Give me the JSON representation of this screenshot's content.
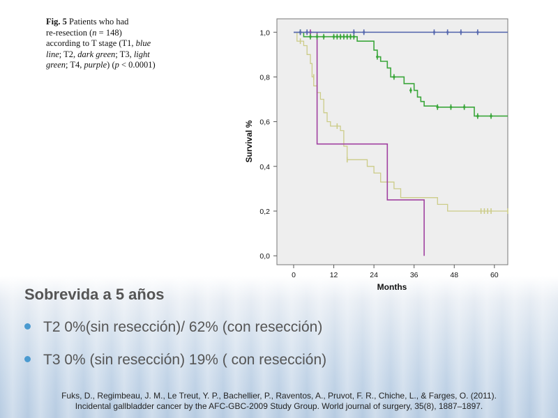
{
  "figure_caption": {
    "fig_label": "Fig. 5",
    "line1_rest": " Patients who had",
    "line2a": "re-resection (",
    "n_var": "n",
    "line2b": " = 148)",
    "line3": "according to T stage (T1, ",
    "line3_italic": "blue",
    "line4_italic": "line",
    "line4a": "; T2, ",
    "line4_italic2": "dark green",
    "line4b": "; T3, ",
    "line4_italic3": "light",
    "line5_italic": "green",
    "line5a": "; T4, ",
    "line5_italic2": "purple",
    "line5b": ") (",
    "p_var": "p",
    "line5c": " < 0.0001)"
  },
  "colors": {
    "plot_bg": "#eeeeee",
    "t1": "#5a6bb0",
    "t2": "#3aa63a",
    "t3": "#cccc88",
    "t4": "#a040a0",
    "bullet": "#4a9ad0"
  },
  "chart_data": {
    "type": "line",
    "title": "",
    "xlabel": "Months",
    "ylabel": "Survival %",
    "xlim": [
      -5,
      64
    ],
    "ylim": [
      -0.04,
      1.06
    ],
    "xticks": [
      "0",
      "12",
      "24",
      "36",
      "48",
      "60"
    ],
    "yticks": [
      "0,0",
      "0,2",
      "0,4",
      "0,6",
      "0,8",
      "1,0"
    ],
    "grid": false,
    "series": [
      {
        "name": "",
        "color_key": "t1",
        "points": [
          [
            0,
            1.0
          ],
          [
            64,
            1.0
          ]
        ],
        "censored": [
          [
            2,
            1.0
          ],
          [
            4,
            1.0
          ],
          [
            18,
            1.0
          ],
          [
            21,
            1.0
          ],
          [
            42,
            1.0
          ],
          [
            46,
            1.0
          ],
          [
            50,
            1.0
          ],
          [
            55,
            1.0
          ]
        ]
      },
      {
        "name": "",
        "color_key": "t2",
        "points": [
          [
            0,
            1.0
          ],
          [
            3,
            1.0
          ],
          [
            3,
            0.98
          ],
          [
            19,
            0.98
          ],
          [
            19,
            0.96
          ],
          [
            24,
            0.96
          ],
          [
            24,
            0.92
          ],
          [
            25,
            0.92
          ],
          [
            25,
            0.89
          ],
          [
            26,
            0.89
          ],
          [
            26,
            0.87
          ],
          [
            28,
            0.87
          ],
          [
            28,
            0.84
          ],
          [
            29,
            0.84
          ],
          [
            29,
            0.8
          ],
          [
            33,
            0.8
          ],
          [
            33,
            0.77
          ],
          [
            36,
            0.77
          ],
          [
            36,
            0.74
          ],
          [
            37,
            0.74
          ],
          [
            37,
            0.71
          ],
          [
            38,
            0.71
          ],
          [
            38,
            0.69
          ],
          [
            39,
            0.69
          ],
          [
            39,
            0.67
          ],
          [
            43,
            0.67
          ],
          [
            43,
            0.665
          ],
          [
            54,
            0.665
          ],
          [
            54,
            0.625
          ],
          [
            64,
            0.625
          ]
        ],
        "censored": [
          [
            2,
            1.0
          ],
          [
            5,
            0.98
          ],
          [
            7,
            0.98
          ],
          [
            9,
            0.98
          ],
          [
            12,
            0.98
          ],
          [
            13,
            0.98
          ],
          [
            14,
            0.98
          ],
          [
            15,
            0.98
          ],
          [
            16,
            0.98
          ],
          [
            17,
            0.98
          ],
          [
            18,
            0.98
          ],
          [
            25,
            0.89
          ],
          [
            30,
            0.8
          ],
          [
            35,
            0.74
          ],
          [
            43,
            0.665
          ],
          [
            47,
            0.665
          ],
          [
            51,
            0.665
          ],
          [
            55,
            0.625
          ],
          [
            59,
            0.625
          ]
        ]
      },
      {
        "name": "",
        "color_key": "t3",
        "points": [
          [
            0,
            1.0
          ],
          [
            1,
            1.0
          ],
          [
            1,
            0.96
          ],
          [
            3,
            0.96
          ],
          [
            3,
            0.94
          ],
          [
            4,
            0.94
          ],
          [
            4,
            0.9
          ],
          [
            5,
            0.9
          ],
          [
            5,
            0.86
          ],
          [
            5.5,
            0.86
          ],
          [
            5.5,
            0.8
          ],
          [
            6,
            0.8
          ],
          [
            6,
            0.76
          ],
          [
            7,
            0.76
          ],
          [
            7,
            0.73
          ],
          [
            8,
            0.73
          ],
          [
            8,
            0.7
          ],
          [
            9,
            0.7
          ],
          [
            9,
            0.64
          ],
          [
            10,
            0.64
          ],
          [
            10,
            0.6
          ],
          [
            11,
            0.6
          ],
          [
            11,
            0.58
          ],
          [
            14,
            0.58
          ],
          [
            14,
            0.56
          ],
          [
            15,
            0.56
          ],
          [
            15,
            0.49
          ],
          [
            16,
            0.49
          ],
          [
            16,
            0.43
          ],
          [
            22,
            0.43
          ],
          [
            22,
            0.4
          ],
          [
            24,
            0.4
          ],
          [
            24,
            0.37
          ],
          [
            26,
            0.37
          ],
          [
            26,
            0.33
          ],
          [
            30,
            0.33
          ],
          [
            30,
            0.3
          ],
          [
            32,
            0.3
          ],
          [
            32,
            0.26
          ],
          [
            43,
            0.26
          ],
          [
            43,
            0.23
          ],
          [
            46,
            0.23
          ],
          [
            46,
            0.2
          ],
          [
            64,
            0.2
          ]
        ],
        "censored": [
          [
            2,
            0.96
          ],
          [
            6,
            0.8
          ],
          [
            13,
            0.58
          ],
          [
            16,
            0.43
          ],
          [
            56,
            0.2
          ],
          [
            57,
            0.2
          ],
          [
            58,
            0.2
          ],
          [
            59,
            0.2
          ],
          [
            64,
            0.2
          ]
        ]
      },
      {
        "name": "",
        "color_key": "t4",
        "points": [
          [
            0,
            1.0
          ],
          [
            7,
            1.0
          ],
          [
            7,
            0.5
          ],
          [
            28,
            0.5
          ],
          [
            28,
            0.25
          ],
          [
            39,
            0.25
          ],
          [
            39,
            0.0
          ]
        ],
        "censored": [
          [
            5,
            1.0
          ]
        ]
      }
    ]
  },
  "slide": {
    "title": "Sobrevida a 5 años",
    "bullets": [
      "T2 0%(sin resección)/ 62% (con resección)",
      "T3 0% (sin resección) 19% ( con resección)"
    ],
    "reference_line1": "Fuks, D., Regimbeau, J. M., Le Treut, Y. P., Bachellier, P., Raventos, A., Pruvot, F. R., Chiche, L., & Farges, O. (2011).",
    "reference_line2": "Incidental gallbladder cancer by the AFC-GBC-2009 Study Group. World journal of surgery, 35(8), 1887–1897."
  }
}
